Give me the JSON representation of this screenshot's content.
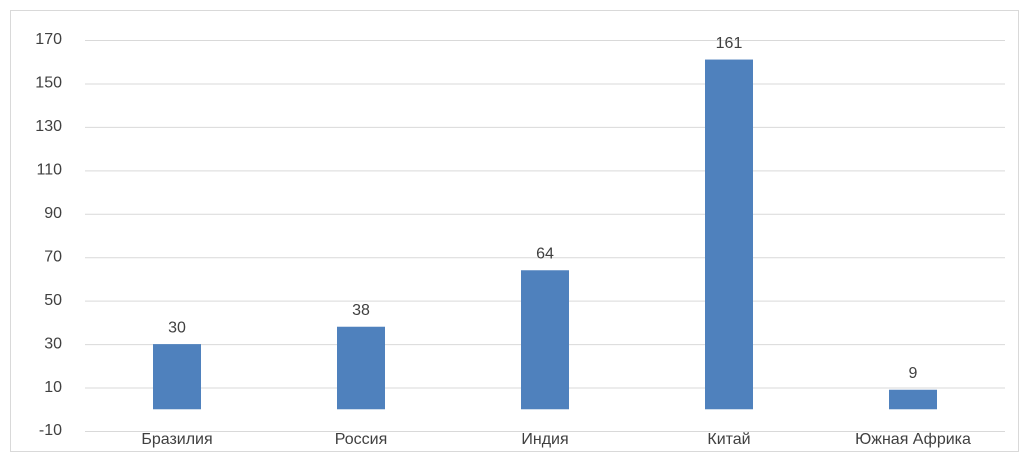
{
  "chart_data": {
    "type": "bar",
    "categories": [
      "Бразилия",
      "Россия",
      "Индия",
      "Китай",
      "Южная Африка"
    ],
    "values": [
      30,
      38,
      64,
      161,
      9
    ],
    "color": "#4f81bd",
    "ylim": [
      -10,
      170
    ],
    "yticks": [
      -10,
      10,
      30,
      50,
      70,
      90,
      110,
      130,
      150,
      170
    ],
    "grid": true
  }
}
